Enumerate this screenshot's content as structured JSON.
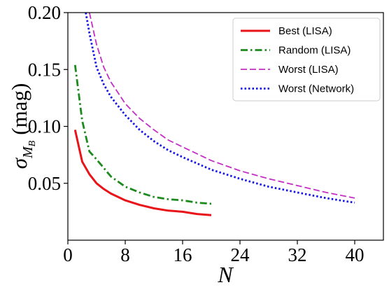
{
  "chart_data": {
    "type": "line",
    "xlabel": "N",
    "ylabel": {
      "symbol": "σ",
      "subscript": "M",
      "sub_subscript": "B",
      "unit": "(mag)"
    },
    "xlim": [
      0,
      44
    ],
    "ylim": [
      0.0,
      0.2
    ],
    "xticks": [
      0,
      8,
      16,
      24,
      32,
      40
    ],
    "yticks": [
      0.05,
      0.1,
      0.15,
      0.2
    ],
    "ytick_labels": [
      "0.05",
      "0.10",
      "0.15",
      "0.20"
    ],
    "grid": false,
    "legend_position": "top-right",
    "series": [
      {
        "name": "Best (LISA)",
        "color": "#e8141a",
        "style": "solid",
        "x": [
          1,
          2,
          3,
          4,
          5,
          6,
          8,
          10,
          12,
          14,
          16,
          18,
          20
        ],
        "y": [
          0.097,
          0.069,
          0.058,
          0.05,
          0.045,
          0.041,
          0.035,
          0.031,
          0.028,
          0.026,
          0.025,
          0.023,
          0.022
        ]
      },
      {
        "name": "Random (LISA)",
        "color": "#1c8a1c",
        "style": "dashdot",
        "x": [
          1,
          2,
          3,
          4,
          6,
          8,
          10,
          12,
          14,
          16,
          18,
          20
        ],
        "y": [
          0.154,
          0.105,
          0.078,
          0.071,
          0.056,
          0.047,
          0.042,
          0.038,
          0.036,
          0.035,
          0.033,
          0.032
        ]
      },
      {
        "name": "Worst (LISA)",
        "color": "#c42ec4",
        "style": "dashed",
        "x": [
          3,
          4,
          5,
          6,
          8,
          10,
          12,
          14,
          16,
          20,
          24,
          28,
          32,
          36,
          40
        ],
        "y": [
          0.2,
          0.172,
          0.152,
          0.139,
          0.12,
          0.107,
          0.097,
          0.088,
          0.082,
          0.07,
          0.061,
          0.054,
          0.048,
          0.042,
          0.037
        ]
      },
      {
        "name": "Worst (Network)",
        "color": "#1414e6",
        "style": "dotted",
        "x": [
          2.5,
          3,
          4,
          5,
          6,
          8,
          10,
          12,
          14,
          16,
          20,
          24,
          28,
          32,
          36,
          40
        ],
        "y": [
          0.2,
          0.182,
          0.152,
          0.137,
          0.126,
          0.11,
          0.097,
          0.087,
          0.079,
          0.073,
          0.062,
          0.054,
          0.047,
          0.042,
          0.037,
          0.033
        ]
      }
    ]
  }
}
